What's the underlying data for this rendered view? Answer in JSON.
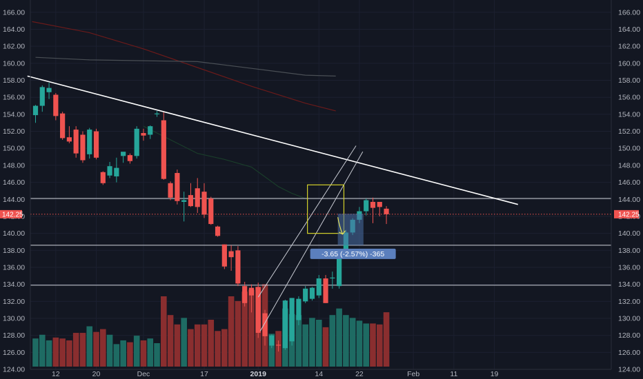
{
  "colors": {
    "background": "#131722",
    "up": "#26a69a",
    "down": "#ef5350",
    "vol_up": "#1e6b63",
    "vol_down": "#8a2e2f",
    "grid": "#1c2030",
    "axis_text": "#b2b5be",
    "last_price": "#ef5350",
    "trendline": "#ffffff",
    "highlight_box": "#d4d22a",
    "measure": "#4a6fa5",
    "ma_red": "#6b1a1a",
    "ma_gray": "#4a4f55",
    "ma_green": "#1a3d2a"
  },
  "chart_data": {
    "type": "candlestick",
    "y_axis_ticks": [
      "166.00",
      "164.00",
      "162.00",
      "160.00",
      "158.00",
      "156.00",
      "154.00",
      "152.00",
      "150.00",
      "148.00",
      "146.00",
      "144.00",
      "142.00",
      "140.00",
      "138.00",
      "136.00",
      "134.00",
      "132.00",
      "130.00",
      "128.00",
      "126.00",
      "124.00"
    ],
    "ylim": [
      123.6,
      167.2
    ],
    "x_axis_ticks": [
      {
        "label": "12",
        "bar": 3
      },
      {
        "label": "20",
        "bar": 9
      },
      {
        "label": "Dec",
        "bar": 16
      },
      {
        "label": "17",
        "bar": 25
      },
      {
        "label": "2019",
        "bar": 33
      },
      {
        "label": "14",
        "bar": 42
      },
      {
        "label": "22",
        "bar": 48
      },
      {
        "label": "Feb",
        "bar": 56
      },
      {
        "label": "11",
        "bar": 62
      },
      {
        "label": "19",
        "bar": 68
      }
    ],
    "last_price": "142.25",
    "last_price_value": 142.25,
    "candles": [
      {
        "o": 153.9,
        "h": 155.1,
        "l": 153.0,
        "c": 155.0,
        "v": 0.3
      },
      {
        "o": 155.0,
        "h": 157.4,
        "l": 154.3,
        "c": 157.2,
        "v": 0.34
      },
      {
        "o": 156.6,
        "h": 157.7,
        "l": 155.8,
        "c": 157.1,
        "v": 0.28
      },
      {
        "o": 156.3,
        "h": 156.5,
        "l": 153.3,
        "c": 153.8,
        "v": 0.31
      },
      {
        "o": 154.1,
        "h": 154.3,
        "l": 151.0,
        "c": 151.2,
        "v": 0.3
      },
      {
        "o": 151.3,
        "h": 152.6,
        "l": 150.6,
        "c": 150.8,
        "v": 0.28
      },
      {
        "o": 152.2,
        "h": 152.6,
        "l": 148.9,
        "c": 149.4,
        "v": 0.36
      },
      {
        "o": 151.6,
        "h": 152.0,
        "l": 148.3,
        "c": 148.6,
        "v": 0.36
      },
      {
        "o": 149.3,
        "h": 152.4,
        "l": 148.8,
        "c": 152.2,
        "v": 0.43
      },
      {
        "o": 152.0,
        "h": 152.3,
        "l": 148.7,
        "c": 148.9,
        "v": 0.37
      },
      {
        "o": 147.2,
        "h": 147.3,
        "l": 145.7,
        "c": 145.9,
        "v": 0.4
      },
      {
        "o": 146.8,
        "h": 148.4,
        "l": 146.5,
        "c": 147.9,
        "v": 0.34
      },
      {
        "o": 146.7,
        "h": 148.9,
        "l": 146.0,
        "c": 147.7,
        "v": 0.24
      },
      {
        "o": 149.1,
        "h": 149.5,
        "l": 148.3,
        "c": 149.6,
        "v": 0.28
      },
      {
        "o": 149.2,
        "h": 149.4,
        "l": 148.2,
        "c": 148.5,
        "v": 0.26
      },
      {
        "o": 149.1,
        "h": 152.6,
        "l": 148.8,
        "c": 152.3,
        "v": 0.33
      },
      {
        "o": 151.8,
        "h": 152.3,
        "l": 150.9,
        "c": 151.5,
        "v": 0.28
      },
      {
        "o": 151.6,
        "h": 152.7,
        "l": 151.1,
        "c": 152.6,
        "v": 0.3
      },
      {
        "o": 154.0,
        "h": 154.4,
        "l": 153.7,
        "c": 154.1,
        "v": 0.25
      },
      {
        "o": 153.3,
        "h": 154.3,
        "l": 146.3,
        "c": 146.4,
        "v": 0.75
      },
      {
        "o": 145.9,
        "h": 146.1,
        "l": 143.9,
        "c": 144.2,
        "v": 0.55
      },
      {
        "o": 147.1,
        "h": 147.5,
        "l": 143.4,
        "c": 143.8,
        "v": 0.45
      },
      {
        "o": 143.7,
        "h": 144.9,
        "l": 141.4,
        "c": 143.9,
        "v": 0.52
      },
      {
        "o": 144.5,
        "h": 145.9,
        "l": 143.1,
        "c": 143.2,
        "v": 0.4
      },
      {
        "o": 145.3,
        "h": 146.5,
        "l": 142.4,
        "c": 143.1,
        "v": 0.45
      },
      {
        "o": 144.9,
        "h": 145.9,
        "l": 141.8,
        "c": 142.2,
        "v": 0.45
      },
      {
        "o": 144.1,
        "h": 144.3,
        "l": 141.0,
        "c": 141.1,
        "v": 0.5
      },
      {
        "o": 140.8,
        "h": 140.9,
        "l": 139.6,
        "c": 139.7,
        "v": 0.38
      },
      {
        "o": 138.7,
        "h": 138.7,
        "l": 135.8,
        "c": 136.1,
        "v": 0.4
      },
      {
        "o": 137.9,
        "h": 138.6,
        "l": 135.6,
        "c": 137.2,
        "v": 0.75
      },
      {
        "o": 138.0,
        "h": 138.5,
        "l": 133.8,
        "c": 134.1,
        "v": 0.7
      },
      {
        "o": 133.8,
        "h": 134.3,
        "l": 131.4,
        "c": 131.8,
        "v": 0.8
      },
      {
        "o": 133.6,
        "h": 134.0,
        "l": 130.7,
        "c": 132.7,
        "v": 0.82
      },
      {
        "o": 133.7,
        "h": 134.2,
        "l": 127.7,
        "c": 128.3,
        "v": 0.85
      },
      {
        "o": 130.6,
        "h": 131.0,
        "l": 126.8,
        "c": 127.9,
        "v": 0.88
      },
      {
        "o": 126.8,
        "h": 128.1,
        "l": 126.5,
        "c": 128.0,
        "v": 0.35
      },
      {
        "o": 126.9,
        "h": 127.4,
        "l": 126.1,
        "c": 126.8,
        "v": 0.38
      },
      {
        "o": 126.5,
        "h": 132.2,
        "l": 126.3,
        "c": 132.1,
        "v": 0.62
      },
      {
        "o": 127.3,
        "h": 132.4,
        "l": 126.8,
        "c": 132.4,
        "v": 0.56
      },
      {
        "o": 129.8,
        "h": 132.6,
        "l": 129.2,
        "c": 132.3,
        "v": 0.55
      },
      {
        "o": 132.0,
        "h": 133.8,
        "l": 131.8,
        "c": 133.5,
        "v": 0.45
      },
      {
        "o": 132.3,
        "h": 133.7,
        "l": 132.1,
        "c": 133.6,
        "v": 0.52
      },
      {
        "o": 132.7,
        "h": 135.1,
        "l": 132.4,
        "c": 134.7,
        "v": 0.5
      },
      {
        "o": 134.7,
        "h": 135.1,
        "l": 131.8,
        "c": 131.8,
        "v": 0.42
      },
      {
        "o": 134.7,
        "h": 135.5,
        "l": 133.5,
        "c": 134.8,
        "v": 0.55
      },
      {
        "o": 133.8,
        "h": 137.7,
        "l": 133.5,
        "c": 137.2,
        "v": 0.62
      },
      {
        "o": 137.8,
        "h": 140.4,
        "l": 137.0,
        "c": 140.1,
        "v": 0.55
      },
      {
        "o": 140.1,
        "h": 141.8,
        "l": 139.8,
        "c": 141.6,
        "v": 0.52
      },
      {
        "o": 141.6,
        "h": 143.1,
        "l": 141.2,
        "c": 142.6,
        "v": 0.49
      },
      {
        "o": 142.6,
        "h": 144.1,
        "l": 142.1,
        "c": 143.9,
        "v": 0.46
      },
      {
        "o": 143.7,
        "h": 144.2,
        "l": 141.2,
        "c": 143.0,
        "v": 0.46
      },
      {
        "o": 143.7,
        "h": 143.6,
        "l": 142.0,
        "c": 143.1,
        "v": 0.45
      },
      {
        "o": 142.9,
        "h": 143.2,
        "l": 141.1,
        "c": 142.25,
        "v": 0.58
      }
    ],
    "horizontal_lines": [
      144.1,
      138.6,
      133.9
    ],
    "trendline": {
      "from": {
        "bar": -1.2,
        "price": 158.5
      },
      "to": {
        "bar": 71.5,
        "price": 143.4
      }
    },
    "channel_lines": [
      {
        "from": {
          "bar": 33,
          "price": 132.5
        },
        "to": {
          "bar": 47.5,
          "price": 150.3
        }
      },
      {
        "from": {
          "bar": 33.3,
          "price": 128.5
        },
        "to": {
          "bar": 48.5,
          "price": 149.6
        }
      }
    ],
    "highlight_box": {
      "bar_from": 40.3,
      "bar_to": 45.7,
      "price_from": 140.0,
      "price_to": 145.7
    },
    "projection_arrow": {
      "from": {
        "bar": 44.8,
        "price": 141.9
      },
      "to": {
        "bar": 45.5,
        "price": 139.9
      }
    },
    "measure": {
      "text": "-3.65 (-2.57%) -365",
      "bar_from": 44.8,
      "bar_to": 48.6,
      "price_from": 142.3,
      "price_to": 138.6
    },
    "moving_averages": [
      {
        "points": [
          [
            -0.5,
            164.9
          ],
          [
            8,
            163.6
          ],
          [
            16,
            161.7
          ],
          [
            24,
            159.5
          ],
          [
            32,
            157.3
          ],
          [
            40,
            155.3
          ],
          [
            44.5,
            154.4
          ]
        ]
      },
      {
        "points": [
          [
            0,
            160.7
          ],
          [
            8,
            160.4
          ],
          [
            16,
            160.3
          ],
          [
            24,
            160.2
          ],
          [
            32,
            159.4
          ],
          [
            40,
            158.6
          ],
          [
            44.5,
            158.5
          ]
        ]
      },
      {
        "points": [
          [
            16,
            152.6
          ],
          [
            24,
            149.4
          ],
          [
            28,
            148.7
          ],
          [
            32,
            147.8
          ],
          [
            36,
            145.5
          ],
          [
            38,
            144.7
          ],
          [
            40,
            144.1
          ]
        ]
      }
    ]
  }
}
